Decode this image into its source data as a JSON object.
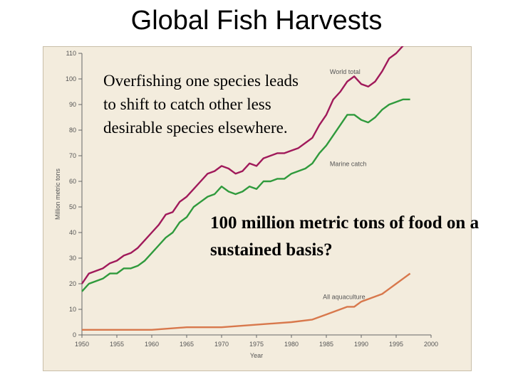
{
  "title": "Global Fish Harvests",
  "callouts": {
    "top": "Overfishing one species leads to shift to catch other less desirable species elsewhere.",
    "bottom": "100 million metric tons of food on a sustained basis?"
  },
  "chart_data": {
    "type": "line",
    "xlabel": "Year",
    "ylabel": "Million metric tons",
    "xlim": [
      1950,
      2000
    ],
    "ylim": [
      0,
      110
    ],
    "xticks": [
      1950,
      1955,
      1960,
      1965,
      1970,
      1975,
      1980,
      1985,
      1990,
      1995,
      2000
    ],
    "yticks": [
      0,
      10,
      20,
      30,
      40,
      50,
      60,
      70,
      80,
      90,
      100,
      110
    ],
    "grid": false,
    "series": [
      {
        "name": "World total",
        "color": "#a0195a",
        "x": [
          1950,
          1951,
          1952,
          1953,
          1954,
          1955,
          1956,
          1957,
          1958,
          1959,
          1960,
          1961,
          1962,
          1963,
          1964,
          1965,
          1966,
          1967,
          1968,
          1969,
          1970,
          1971,
          1972,
          1973,
          1974,
          1975,
          1976,
          1977,
          1978,
          1979,
          1980,
          1981,
          1982,
          1983,
          1984,
          1985,
          1986,
          1987,
          1988,
          1989,
          1990,
          1991,
          1992,
          1993,
          1994,
          1995,
          1996,
          1997
        ],
        "values": [
          20,
          24,
          25,
          26,
          28,
          29,
          31,
          32,
          34,
          37,
          40,
          43,
          47,
          48,
          52,
          54,
          57,
          60,
          63,
          64,
          66,
          65,
          63,
          64,
          67,
          66,
          69,
          70,
          71,
          71,
          72,
          73,
          75,
          77,
          82,
          86,
          92,
          95,
          99,
          101,
          98,
          97,
          99,
          103,
          108,
          110,
          113,
          115
        ]
      },
      {
        "name": "Marine catch",
        "color": "#2f9a3c",
        "x": [
          1950,
          1951,
          1952,
          1953,
          1954,
          1955,
          1956,
          1957,
          1958,
          1959,
          1960,
          1961,
          1962,
          1963,
          1964,
          1965,
          1966,
          1967,
          1968,
          1969,
          1970,
          1971,
          1972,
          1973,
          1974,
          1975,
          1976,
          1977,
          1978,
          1979,
          1980,
          1981,
          1982,
          1983,
          1984,
          1985,
          1986,
          1987,
          1988,
          1989,
          1990,
          1991,
          1992,
          1993,
          1994,
          1995,
          1996,
          1997
        ],
        "values": [
          17,
          20,
          21,
          22,
          24,
          24,
          26,
          26,
          27,
          29,
          32,
          35,
          38,
          40,
          44,
          46,
          50,
          52,
          54,
          55,
          58,
          56,
          55,
          56,
          58,
          57,
          60,
          60,
          61,
          61,
          63,
          64,
          65,
          67,
          71,
          74,
          78,
          82,
          86,
          86,
          84,
          83,
          85,
          88,
          90,
          91,
          92,
          92
        ]
      },
      {
        "name": "All aquaculture",
        "color": "#d8784c",
        "x": [
          1950,
          1955,
          1960,
          1965,
          1970,
          1975,
          1980,
          1983,
          1985,
          1987,
          1988,
          1989,
          1990,
          1991,
          1992,
          1993,
          1994,
          1995,
          1996,
          1997
        ],
        "values": [
          2,
          2,
          2,
          3,
          3,
          4,
          5,
          6,
          8,
          10,
          11,
          11,
          13,
          14,
          15,
          16,
          18,
          20,
          22,
          24
        ]
      }
    ]
  }
}
